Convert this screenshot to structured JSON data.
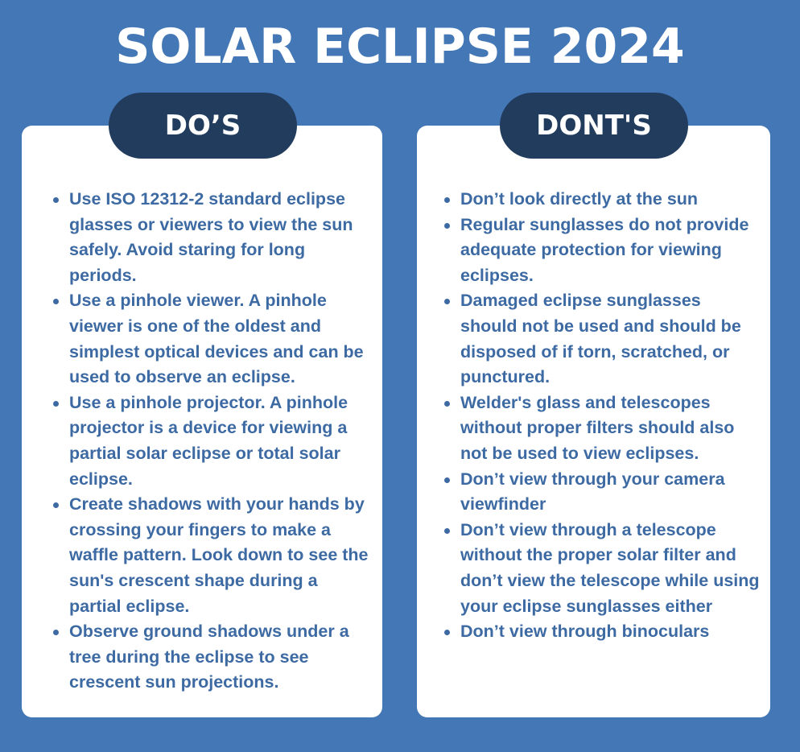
{
  "title": "SOLAR ECLIPSE 2024",
  "dos": {
    "header": "DO’S",
    "items": [
      "Use ISO 12312-2 standard eclipse glasses or viewers to view the sun safely. Avoid staring for long periods.",
      "Use a pinhole viewer. A pinhole viewer is one of the oldest and simplest optical devices and can be used to observe an eclipse.",
      "Use a pinhole projector. A pinhole projector is a device for viewing a partial solar eclipse or total solar eclipse.",
      "Create shadows with your hands by crossing your fingers to make a waffle pattern. Look down to see the sun's crescent shape during a partial eclipse.",
      "Observe ground shadows under a tree during the eclipse to see crescent sun projections."
    ]
  },
  "donts": {
    "header": "DONT'S",
    "items": [
      "Don’t look directly at the sun",
      "Regular sunglasses do not provide adequate protection for viewing eclipses.",
      "Damaged eclipse sunglasses should not be used and should be disposed of if torn, scratched, or punctured.",
      "Welder's glass and telescopes without proper filters should also not be used to view eclipses.",
      "Don’t view through your camera viewfinder",
      "Don’t view through a telescope without the proper solar filter and don’t view the telescope while using your eclipse sunglasses either",
      "Don’t view through binoculars"
    ]
  },
  "colors": {
    "background": "#4477b5",
    "card": "#ffffff",
    "pill": "#223c5e",
    "text": "#3d6aa3"
  }
}
